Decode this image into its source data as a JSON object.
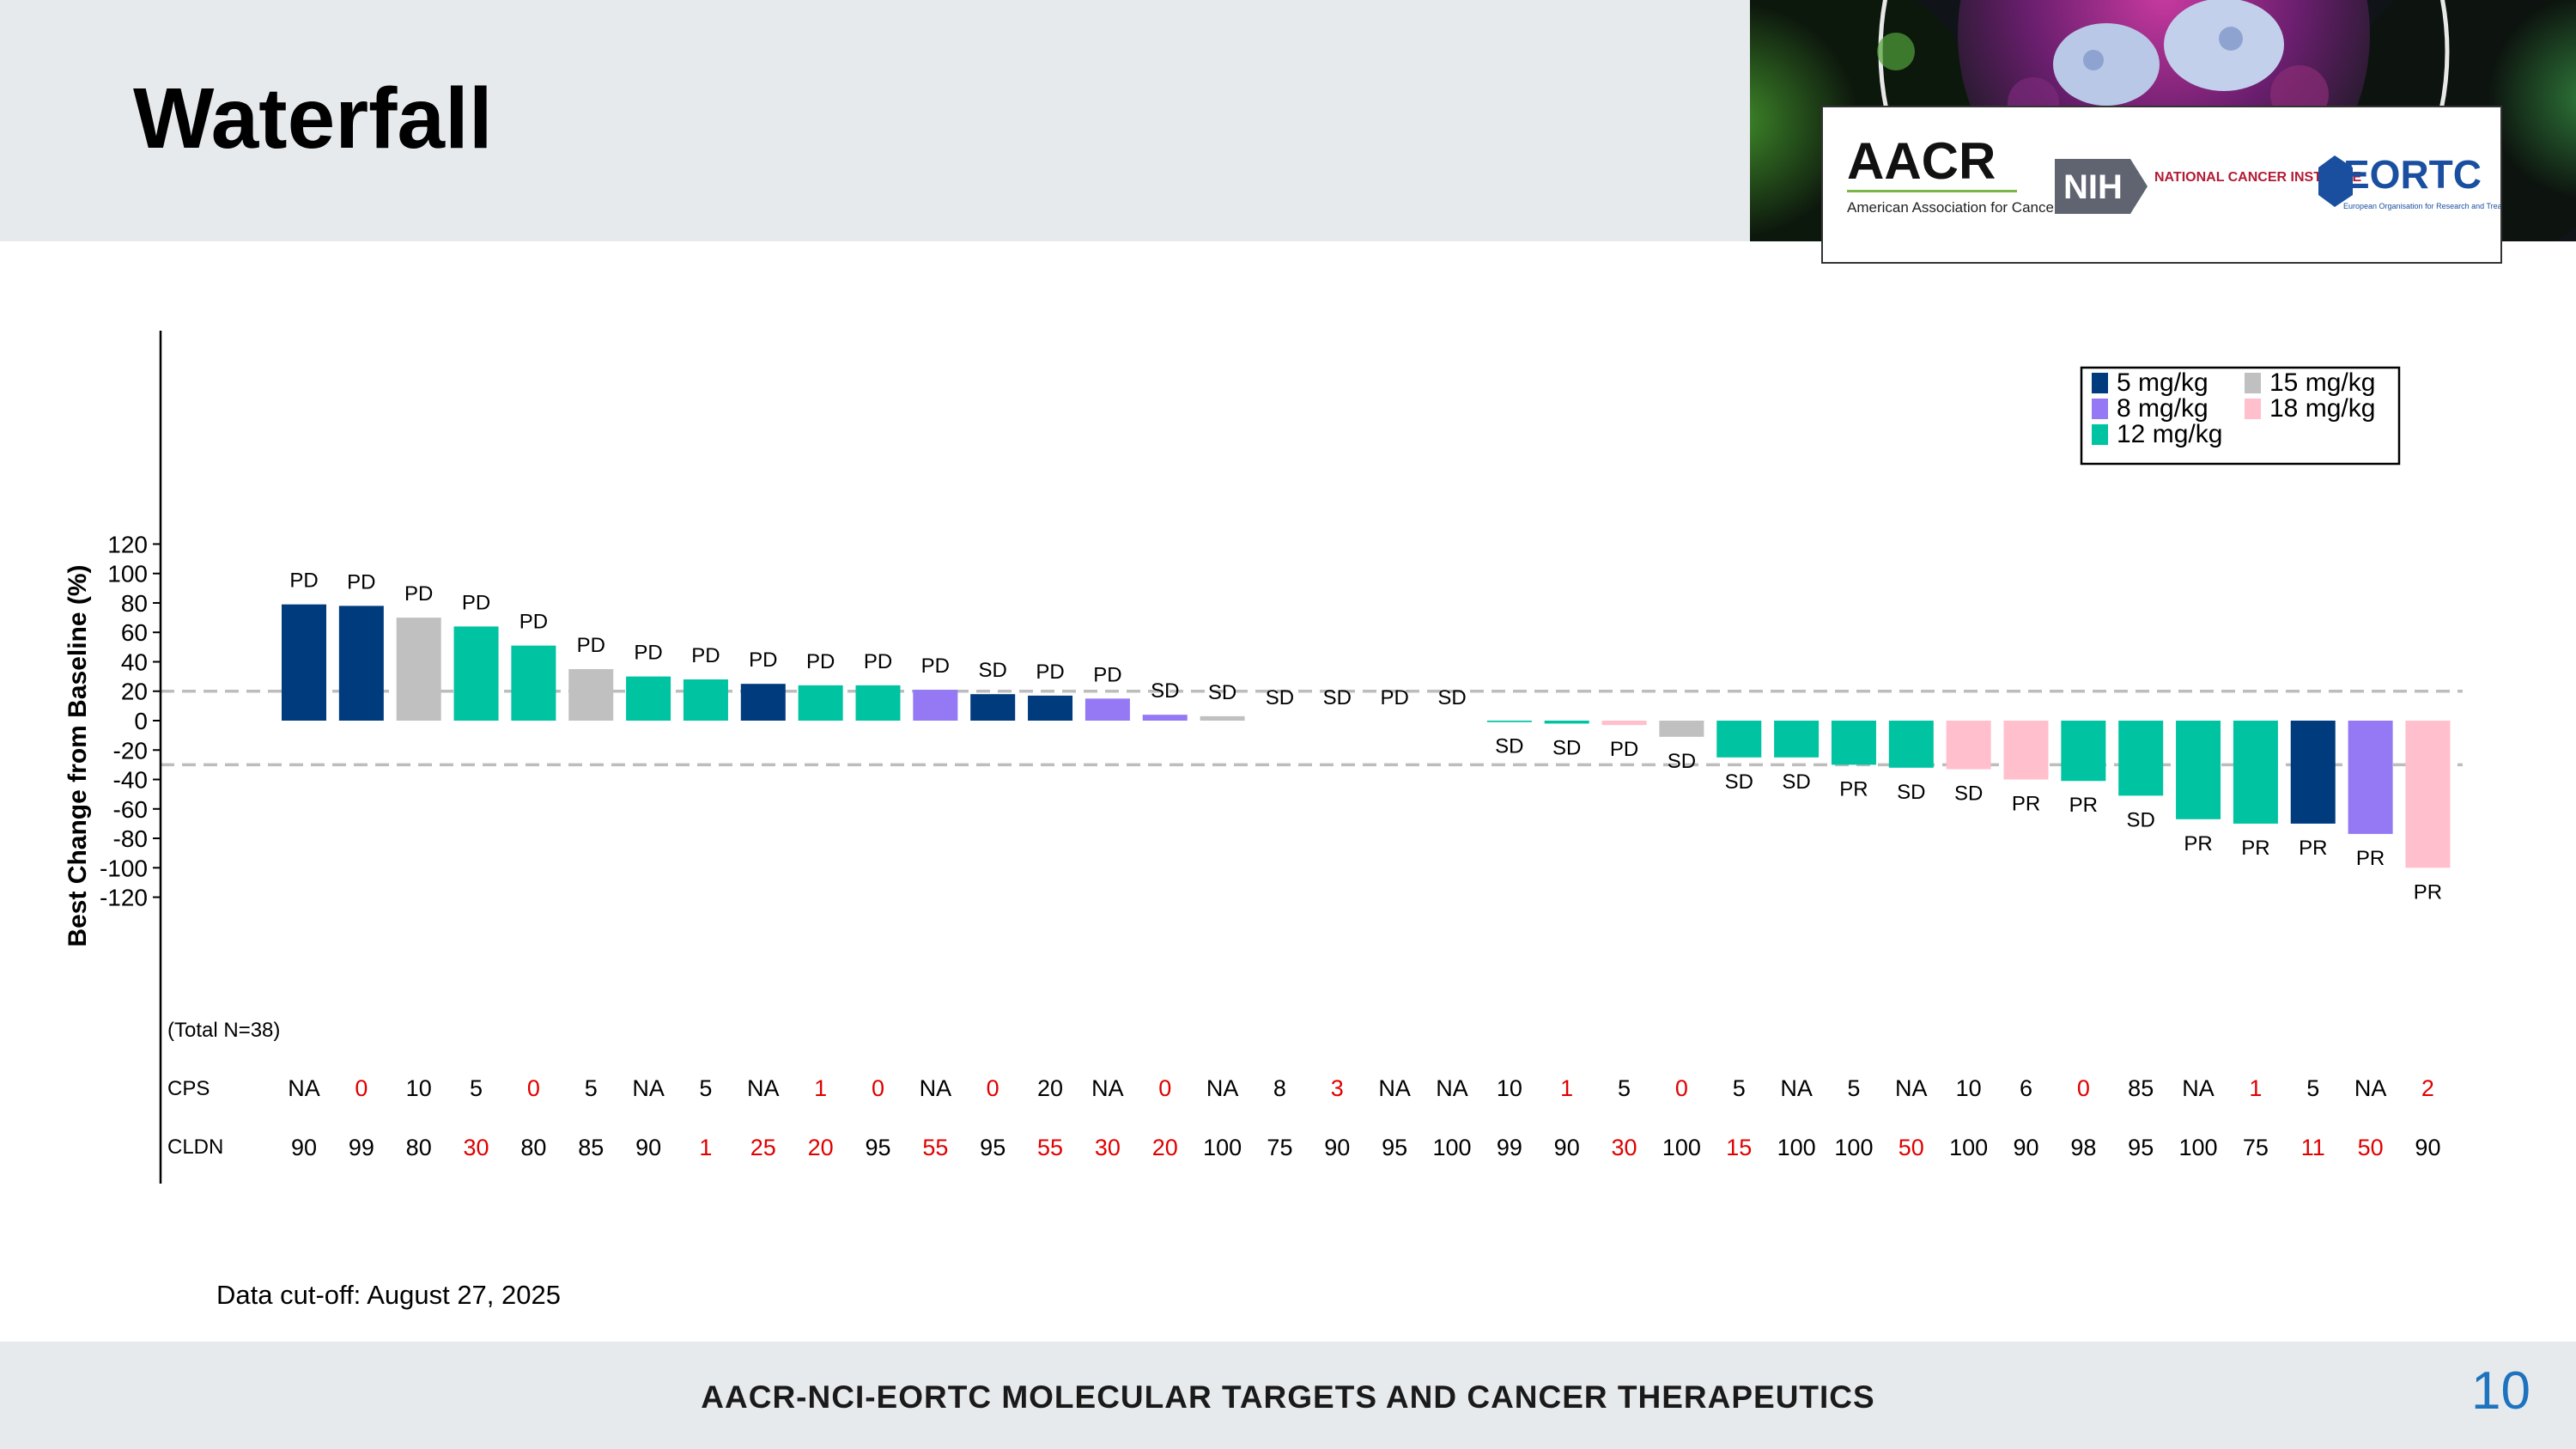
{
  "slide": {
    "title": "Waterfall",
    "cutoff": "Data cut-off: August 27, 2025",
    "footer": "AACR-NCI-EORTC MOLECULAR TARGETS AND CANCER THERAPEUTICS",
    "page_number": "10"
  },
  "logos": {
    "aacr_wordmark": "AACR",
    "aacr_name": "American Association for Cancer Research",
    "nih_mark": "NIH",
    "nci_name": "NATIONAL CANCER INSTITUTE",
    "eortc_wordmark": "EORTC",
    "eortc_name": "European Organisation for Research and Treatment of Cancer"
  },
  "colors": {
    "5 mg/kg": "#003b7e",
    "8 mg/kg": "#9579f4",
    "12 mg/kg": "#00c3a2",
    "15 mg/kg": "#c0c0c0",
    "18 mg/kg": "#ffbfcc",
    "red_value": "#e00000",
    "black_value": "#000000",
    "accent_blue": "#1e73be"
  },
  "chart_data": {
    "type": "bar",
    "ylabel": "Best Change from Baseline (%)",
    "yticks": [
      120,
      100,
      80,
      60,
      40,
      20,
      0,
      -20,
      -40,
      -60,
      -80,
      -100,
      -120
    ],
    "ylim": [
      -120,
      120
    ],
    "reference_lines": [
      20,
      -30
    ],
    "total_label": "(Total N=38)",
    "legend_position": "top-right",
    "legend": [
      "5 mg/kg",
      "15 mg/kg",
      "8 mg/kg",
      "18 mg/kg",
      "12 mg/kg"
    ],
    "row_labels": {
      "cps": "CPS",
      "cldn": "CLDN"
    },
    "values": [
      79,
      78,
      70,
      64,
      51,
      35,
      30,
      28,
      25,
      24,
      24,
      21,
      18,
      17,
      15,
      4,
      3,
      0,
      0,
      0,
      0,
      -1,
      -2,
      -3,
      -11,
      -25,
      -25,
      -30,
      -32,
      -33,
      -40,
      -41,
      -51,
      -67,
      -70,
      -70,
      -77,
      -100
    ],
    "doses": [
      "5 mg/kg",
      "5 mg/kg",
      "15 mg/kg",
      "12 mg/kg",
      "12 mg/kg",
      "15 mg/kg",
      "12 mg/kg",
      "12 mg/kg",
      "5 mg/kg",
      "12 mg/kg",
      "12 mg/kg",
      "8 mg/kg",
      "5 mg/kg",
      "5 mg/kg",
      "8 mg/kg",
      "8 mg/kg",
      "15 mg/kg",
      "12 mg/kg",
      "12 mg/kg",
      "12 mg/kg",
      "12 mg/kg",
      "12 mg/kg",
      "12 mg/kg",
      "18 mg/kg",
      "15 mg/kg",
      "12 mg/kg",
      "12 mg/kg",
      "12 mg/kg",
      "12 mg/kg",
      "18 mg/kg",
      "18 mg/kg",
      "12 mg/kg",
      "12 mg/kg",
      "12 mg/kg",
      "12 mg/kg",
      "5 mg/kg",
      "8 mg/kg",
      "18 mg/kg"
    ],
    "responses": [
      "PD",
      "PD",
      "PD",
      "PD",
      "PD",
      "PD",
      "PD",
      "PD",
      "PD",
      "PD",
      "PD",
      "PD",
      "SD",
      "PD",
      "PD",
      "SD",
      "SD",
      "SD",
      "SD",
      "PD",
      "SD",
      "SD",
      "SD",
      "PD",
      "SD",
      "SD",
      "SD",
      "PR",
      "SD",
      "SD",
      "PR",
      "PR",
      "SD",
      "PR",
      "PR",
      "PR",
      "PR",
      "PR"
    ],
    "cps": [
      "NA",
      "0",
      "10",
      "5",
      "0",
      "5",
      "NA",
      "5",
      "NA",
      "1",
      "0",
      "NA",
      "0",
      "20",
      "NA",
      "0",
      "NA",
      "8",
      "3",
      "NA",
      "NA",
      "10",
      "1",
      "5",
      "0",
      "5",
      "NA",
      "5",
      "NA",
      "10",
      "6",
      "0",
      "85",
      "NA",
      "1",
      "5",
      "NA",
      "2"
    ],
    "cps_red": [
      false,
      true,
      false,
      false,
      true,
      false,
      false,
      false,
      false,
      true,
      true,
      false,
      true,
      false,
      false,
      true,
      false,
      false,
      true,
      false,
      false,
      false,
      true,
      false,
      true,
      false,
      false,
      false,
      false,
      false,
      false,
      true,
      false,
      false,
      true,
      false,
      false,
      true
    ],
    "cldn": [
      "90",
      "99",
      "80",
      "30",
      "80",
      "85",
      "90",
      "1",
      "25",
      "20",
      "95",
      "55",
      "95",
      "55",
      "30",
      "20",
      "100",
      "75",
      "90",
      "95",
      "100",
      "99",
      "90",
      "30",
      "100",
      "15",
      "100",
      "100",
      "50",
      "100",
      "90",
      "98",
      "95",
      "100",
      "75",
      "11",
      "50",
      "90"
    ],
    "cldn_red": [
      false,
      false,
      false,
      true,
      false,
      false,
      false,
      true,
      true,
      true,
      false,
      true,
      false,
      true,
      true,
      true,
      false,
      false,
      false,
      false,
      false,
      false,
      false,
      true,
      false,
      true,
      false,
      false,
      true,
      false,
      false,
      false,
      false,
      false,
      false,
      true,
      true,
      false
    ]
  }
}
